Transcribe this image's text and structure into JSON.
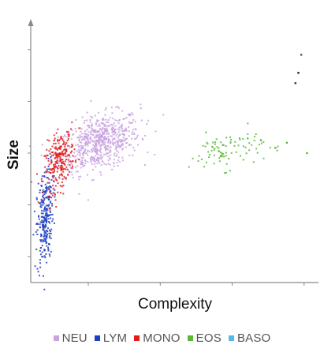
{
  "chart_data": {
    "type": "scatter",
    "xlabel": "Complexity",
    "ylabel": "Size",
    "grid": false,
    "axis_ticks_labeled": false,
    "xlim": [
      0,
      100
    ],
    "ylim": [
      0,
      100
    ],
    "legend_position": "bottom",
    "series": [
      {
        "name": "NEU",
        "color": "#c9a2e0",
        "center": [
          24,
          54
        ],
        "spread": [
          7.0,
          5.2
        ],
        "count": 650,
        "tilt": 0.45
      },
      {
        "name": "LYM",
        "color": "#1f3fc2",
        "center": [
          5,
          25
        ],
        "spread": [
          1.4,
          9.5
        ],
        "count": 260,
        "tilt": 0.35
      },
      {
        "name": "MONO",
        "color": "#e31b1b",
        "center": [
          10,
          47
        ],
        "spread": [
          2.6,
          5.3
        ],
        "count": 240,
        "tilt": 0.5
      },
      {
        "name": "EOS",
        "color": "#5ab836",
        "center": [
          68,
          51
        ],
        "spread": [
          6.5,
          3.6
        ],
        "count": 90,
        "tilt": 0.3
      },
      {
        "name": "BASO",
        "color": "#55b9e8",
        "center": [
          30,
          40
        ],
        "spread": [
          1.0,
          1.0
        ],
        "count": 0,
        "tilt": 0
      }
    ],
    "outliers": [
      {
        "x": 93,
        "y": 81,
        "color": "#222222"
      },
      {
        "x": 92,
        "y": 77,
        "color": "#333333"
      },
      {
        "x": 94,
        "y": 88,
        "color": "#555555"
      },
      {
        "x": 80,
        "y": 55,
        "color": "#5ab836"
      },
      {
        "x": 85,
        "y": 52,
        "color": "#5ab836"
      },
      {
        "x": 89,
        "y": 54,
        "color": "#5ab836"
      },
      {
        "x": 96,
        "y": 50,
        "color": "#5ab836"
      }
    ]
  }
}
